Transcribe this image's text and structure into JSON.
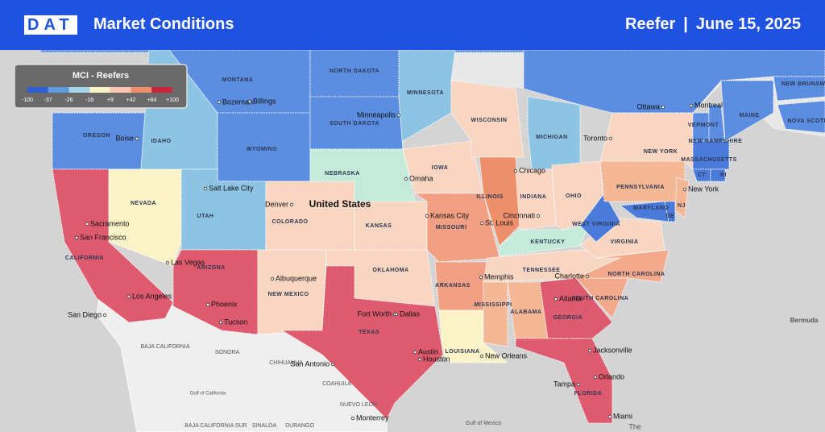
{
  "header": {
    "logo": "DAT",
    "title": "Market Conditions",
    "equipment": "Reefer",
    "separator": "|",
    "date": "June 15, 2025"
  },
  "legend": {
    "title": "MCI - Reefers",
    "ticks": [
      "-100",
      "-37",
      "-26",
      "-16",
      "+9",
      "+42",
      "+84",
      "+100"
    ],
    "colors": [
      "#2f5fd0",
      "#5d9bdb",
      "#a4d6ea",
      "#fbf3c8",
      "#f7c8ad",
      "#ee8f6c",
      "#c8243a"
    ]
  },
  "regions": [
    {
      "label": null,
      "color": "#5b8de0"
    },
    {
      "label": "NEW BRUNSWICK",
      "color": "#5b8de0"
    },
    {
      "label": "NOVA SCOTIA",
      "color": "#5b8de0"
    },
    {
      "label": null,
      "color": "#5b8de0"
    },
    {
      "label": "OREGON",
      "color": "#5b8de0"
    },
    {
      "label": "CALIFORNIA",
      "color": "#de5a6e"
    },
    {
      "label": "NEVADA",
      "color": "#fbf3c8"
    },
    {
      "label": "IDAHO",
      "color": "#8ec4e3"
    },
    {
      "label": "MONTANA",
      "color": "#5b8de0"
    },
    {
      "label": "WYOMING",
      "color": "#5b8de0"
    },
    {
      "label": "UTAH",
      "color": "#8ec4e3"
    },
    {
      "label": "COLORADO",
      "color": "#f9d6c2"
    },
    {
      "label": "ARIZONA",
      "color": "#de5a6e"
    },
    {
      "label": "NEW MEXICO",
      "color": "#f9d6c2"
    },
    {
      "label": "NORTH DAKOTA",
      "color": "#5b8de0"
    },
    {
      "label": "SOUTH DAKOTA",
      "color": "#5b8de0"
    },
    {
      "label": "NEBRASKA",
      "color": "#c4ead9"
    },
    {
      "label": "KANSAS",
      "color": "#f9d6c2"
    },
    {
      "label": "OKLAHOMA",
      "color": "#f9d6c2"
    },
    {
      "label": "TEXAS",
      "color": "#de5a6e"
    },
    {
      "label": "MINNESOTA",
      "color": "#8ec4e3"
    },
    {
      "label": "IOWA",
      "color": "#f9d6c2"
    },
    {
      "label": "MISSOURI",
      "color": "#f1a084"
    },
    {
      "label": "ARKANSAS",
      "color": "#f1a084"
    },
    {
      "label": "LOUISIANA",
      "color": "#fbf3c8"
    },
    {
      "label": "WISCONSIN",
      "color": "#f9d6c2"
    },
    {
      "label": "ILLINOIS",
      "color": "#ee8f6c"
    },
    {
      "label": "MICHIGAN",
      "color": "#8ec4e3"
    },
    {
      "label": "INDIANA",
      "color": "#f9d6c2"
    },
    {
      "label": "OHIO",
      "color": "#f9d6c2"
    },
    {
      "label": "KENTUCKY",
      "color": "#c4ead9"
    },
    {
      "label": "TENNESSEE",
      "color": "#f9d6c2"
    },
    {
      "label": "MISSISSIPPI",
      "color": "#f5b896"
    },
    {
      "label": "ALABAMA",
      "color": "#f5b896"
    },
    {
      "label": "GEORGIA",
      "color": "#de5a6e"
    },
    {
      "label": "FLORIDA",
      "color": "#de5a6e"
    },
    {
      "label": "SOUTH CAROLINA",
      "color": "#f3a98b"
    },
    {
      "label": "NORTH CAROLINA",
      "color": "#f3a98b"
    },
    {
      "label": "VIRGINIA",
      "color": "#f9d6c2"
    },
    {
      "label": "WEST VIRGINIA",
      "color": "#4a7bdb"
    },
    {
      "label": "PENNSYLVANIA",
      "color": "#f5b896"
    },
    {
      "label": "NEW YORK",
      "color": "#f9d6c2"
    },
    {
      "label": "MARYLAND",
      "color": "#4a7bdb"
    },
    {
      "label": "DE",
      "color": "#4a7bdb"
    },
    {
      "label": "NJ",
      "color": "#f5b896"
    },
    {
      "label": "VERMONT",
      "color": "#5b8de0"
    },
    {
      "label": "NEW HAMPSHIRE",
      "color": "#5b8de0"
    },
    {
      "label": "MAINE",
      "color": "#5b8de0"
    },
    {
      "label": "MASSACHUSETTS",
      "color": "#4a7bdb"
    },
    {
      "label": "CT",
      "color": "#4a7bdb"
    },
    {
      "label": "RI",
      "color": "#4a7bdb"
    }
  ],
  "cities": [
    "Sacramento",
    "San Francisco",
    "Los Angeles",
    "San Diego",
    "Las Vegas",
    "Phoenix",
    "Tucson",
    "Salt Lake City",
    "Boise",
    "Bozeman",
    "Billings",
    "Denver",
    "Albuquerque",
    "Omaha",
    "Minneapolis",
    "Kansas City",
    "St. Louis",
    "Chicago",
    "Cincinnati",
    "Memphis",
    "Fort Worth",
    "Dallas",
    "Austin",
    "San Antonio",
    "Houston",
    "New Orleans",
    "Atlanta",
    "Charlotte",
    "Jacksonville",
    "Orlando",
    "Tampa",
    "Miami",
    "Toronto",
    "Ottawa",
    "Montreal",
    "New York",
    "Monterrey"
  ],
  "places": [
    "United States",
    "Bermuda",
    "Gulf of Mexico",
    "Gulf of California",
    "BAJA CALIFORNIA",
    "SONORA",
    "CHIHUAHUA",
    "COAHUILA",
    "NUEVO LEON",
    "SINALOA",
    "DURANGO",
    "BAJA CALIFORNIA SUR",
    "The"
  ]
}
